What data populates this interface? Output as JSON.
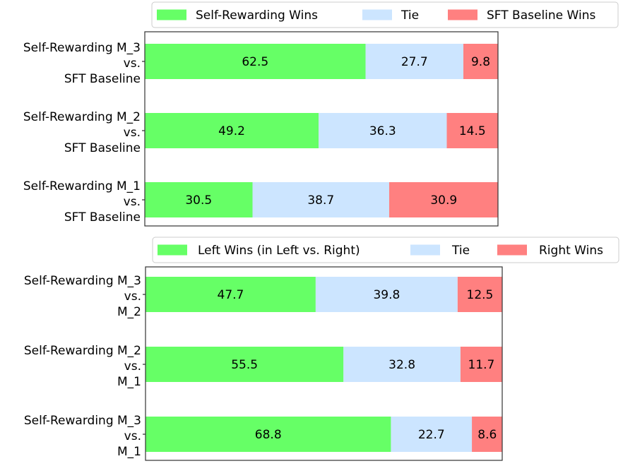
{
  "colors": {
    "wins": "#66ff66",
    "tie": "#cce5ff",
    "loses": "#ff8080"
  },
  "chart_data": [
    {
      "type": "bar",
      "orientation": "horizontal",
      "stacked": true,
      "legend": {
        "placement": "top",
        "entries": [
          "Self-Rewarding Wins",
          "Tie",
          "SFT Baseline Wins"
        ]
      },
      "categories": [
        [
          "Self-Rewarding M_3",
          "vs.",
          "SFT Baseline"
        ],
        [
          "Self-Rewarding M_2",
          "vs.",
          "SFT Baseline"
        ],
        [
          "Self-Rewarding M_1",
          "vs.",
          "SFT Baseline"
        ]
      ],
      "series": [
        {
          "name": "Self-Rewarding Wins",
          "values": [
            62.5,
            49.2,
            30.5
          ]
        },
        {
          "name": "Tie",
          "values": [
            27.7,
            36.3,
            38.7
          ]
        },
        {
          "name": "SFT Baseline Wins",
          "values": [
            9.8,
            14.5,
            30.9
          ]
        }
      ],
      "xlim": [
        0,
        100
      ],
      "grid": false
    },
    {
      "type": "bar",
      "orientation": "horizontal",
      "stacked": true,
      "legend": {
        "placement": "top",
        "entries": [
          "Left Wins (in Left vs. Right)",
          "Tie",
          "Right Wins"
        ]
      },
      "categories": [
        [
          "Self-Rewarding M_3",
          "vs.",
          "M_2"
        ],
        [
          "Self-Rewarding M_2",
          "vs.",
          "M_1"
        ],
        [
          "Self-Rewarding M_3",
          "vs.",
          "M_1"
        ]
      ],
      "series": [
        {
          "name": "Left Wins (in Left vs. Right)",
          "values": [
            47.7,
            55.5,
            68.8
          ]
        },
        {
          "name": "Tie",
          "values": [
            39.8,
            32.8,
            22.7
          ]
        },
        {
          "name": "Right Wins",
          "values": [
            12.5,
            11.7,
            8.6
          ]
        }
      ],
      "xlim": [
        0,
        100
      ],
      "grid": false
    }
  ]
}
